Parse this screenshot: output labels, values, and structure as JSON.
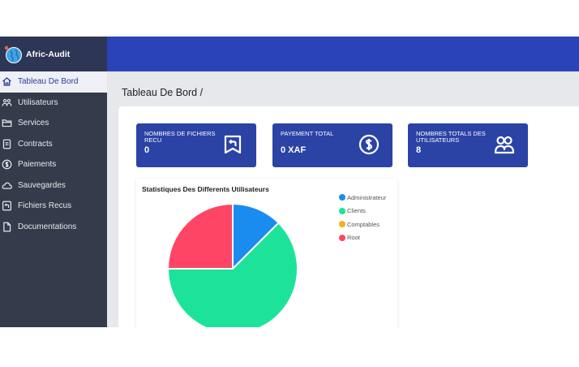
{
  "app": {
    "name": "Afric-Audit"
  },
  "sidebar": {
    "items": [
      {
        "label": "Tableau De Bord",
        "icon": "home-icon",
        "active": true
      },
      {
        "label": "Utilisateurs",
        "icon": "users-icon",
        "active": false
      },
      {
        "label": "Services",
        "icon": "folder-icon",
        "active": false
      },
      {
        "label": "Contracts",
        "icon": "document-icon",
        "active": false
      },
      {
        "label": "Paiements",
        "icon": "dollar-circle-icon",
        "active": false
      },
      {
        "label": "Sauvegardes",
        "icon": "cloud-icon",
        "active": false
      },
      {
        "label": "Fichiers Recus",
        "icon": "file-return-icon",
        "active": false
      },
      {
        "label": "Documentations",
        "icon": "file-icon",
        "active": false
      }
    ]
  },
  "header": {
    "title": "Tableau De Bord /"
  },
  "stats": [
    {
      "label": "NOMBRES DE FICHIERS RECU",
      "value": "0",
      "icon": "file-return-icon"
    },
    {
      "label": "PAYEMENT TOTAL",
      "value": "0 XAF",
      "icon": "dollar-circle-icon"
    },
    {
      "label": "NOMBRES TOTALS DES UTILISATEURS",
      "value": "8",
      "icon": "users-icon"
    }
  ],
  "chart": {
    "title": "Statistiques Des Differents Utilisateurs",
    "legend": [
      {
        "name": "Administrateur",
        "color": "#1a8cf0"
      },
      {
        "name": "Clients",
        "color": "#1de39a"
      },
      {
        "name": "Comptables",
        "color": "#f2b01e"
      },
      {
        "name": "Root",
        "color": "#ff4566"
      }
    ]
  },
  "chart_data": {
    "type": "pie",
    "title": "Statistiques Des Differents Utilisateurs",
    "labels": [
      "Administrateur",
      "Clients",
      "Comptables",
      "Root"
    ],
    "values": [
      1,
      5,
      0,
      2
    ],
    "colors": [
      "#1a8cf0",
      "#1de39a",
      "#f2b01e",
      "#ff4566"
    ],
    "legend_position": "right"
  },
  "colors": {
    "sidebar": "#343b4a",
    "topbar": "#2b43b8",
    "card": "#2b43a5",
    "accent": "#2a3c9c"
  }
}
